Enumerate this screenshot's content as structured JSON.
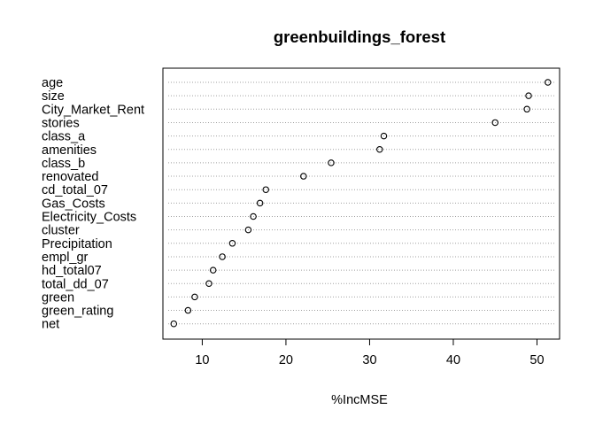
{
  "chart_data": {
    "type": "scatter",
    "title": "greenbuildings_forest",
    "xlabel": "%IncMSE",
    "ylabel": "",
    "xlim": [
      5.3,
      52.7
    ],
    "xticks": [
      10,
      20,
      30,
      40,
      50
    ],
    "grid": "dotted horizontal guide line per variable",
    "legend": "none",
    "point_style": "open circle",
    "categories": [
      "age",
      "size",
      "City_Market_Rent",
      "stories",
      "class_a",
      "amenities",
      "class_b",
      "renovated",
      "cd_total_07",
      "Gas_Costs",
      "Electricity_Costs",
      "cluster",
      "Precipitation",
      "empl_gr",
      "hd_total07",
      "total_dd_07",
      "green",
      "green_rating",
      "net"
    ],
    "values": [
      51.3,
      49.0,
      48.8,
      45.0,
      31.7,
      31.2,
      25.4,
      22.1,
      17.6,
      16.9,
      16.1,
      15.5,
      13.6,
      12.4,
      11.3,
      10.8,
      9.1,
      8.3,
      6.6
    ]
  }
}
